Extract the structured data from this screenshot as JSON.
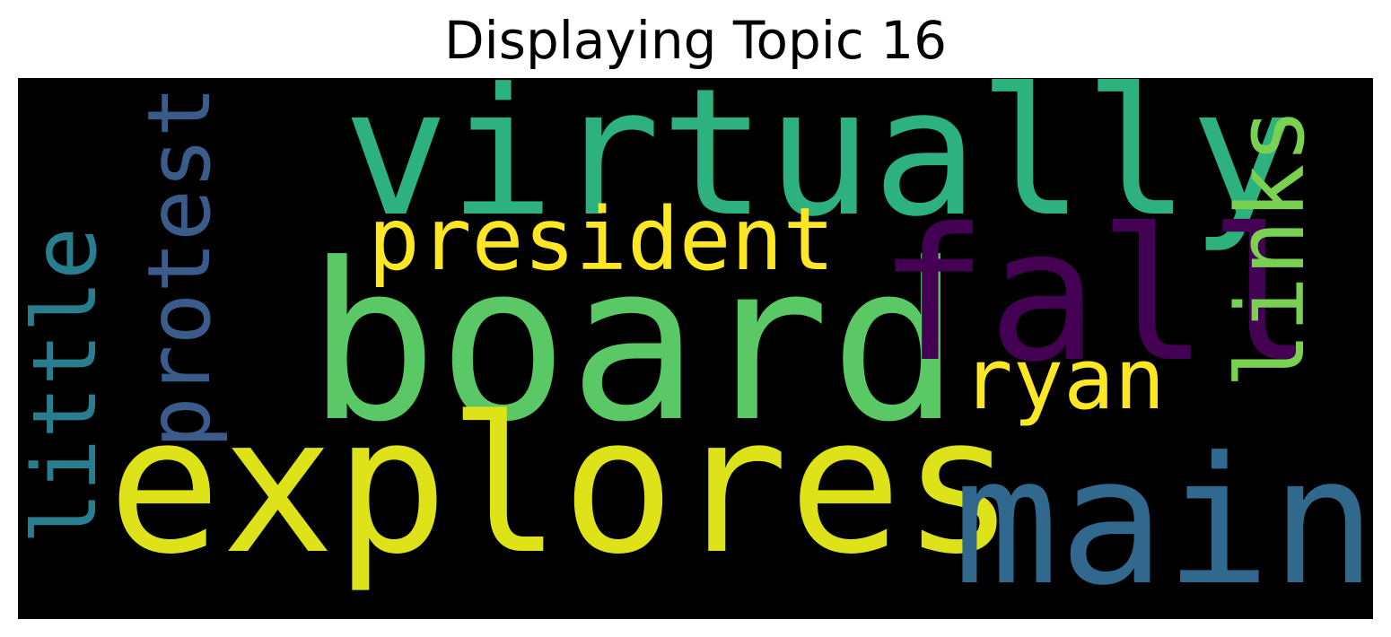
{
  "title": "Displaying Topic 16",
  "colors": {
    "page_background": "#ffffff",
    "cloud_background": "#000000"
  },
  "words": [
    {
      "key": "virtually",
      "text": "virtually",
      "color": "#2db17e",
      "orientation": "horizontal"
    },
    {
      "key": "board",
      "text": "board",
      "color": "#5ac864",
      "orientation": "horizontal"
    },
    {
      "key": "explores",
      "text": "explores",
      "color": "#dde318",
      "orientation": "horizontal"
    },
    {
      "key": "fall",
      "text": "fall",
      "color": "#440154",
      "orientation": "horizontal"
    },
    {
      "key": "main",
      "text": "main",
      "color": "#31688e",
      "orientation": "horizontal"
    },
    {
      "key": "president",
      "text": "president",
      "color": "#fde725",
      "orientation": "horizontal"
    },
    {
      "key": "ryan",
      "text": "ryan",
      "color": "#fde725",
      "orientation": "horizontal"
    },
    {
      "key": "protest",
      "text": "protest",
      "color": "#3b5c8b",
      "orientation": "vertical"
    },
    {
      "key": "little",
      "text": "little",
      "color": "#287d8e",
      "orientation": "vertical"
    },
    {
      "key": "links",
      "text": "links",
      "color": "#7ad151",
      "orientation": "vertical"
    }
  ]
}
